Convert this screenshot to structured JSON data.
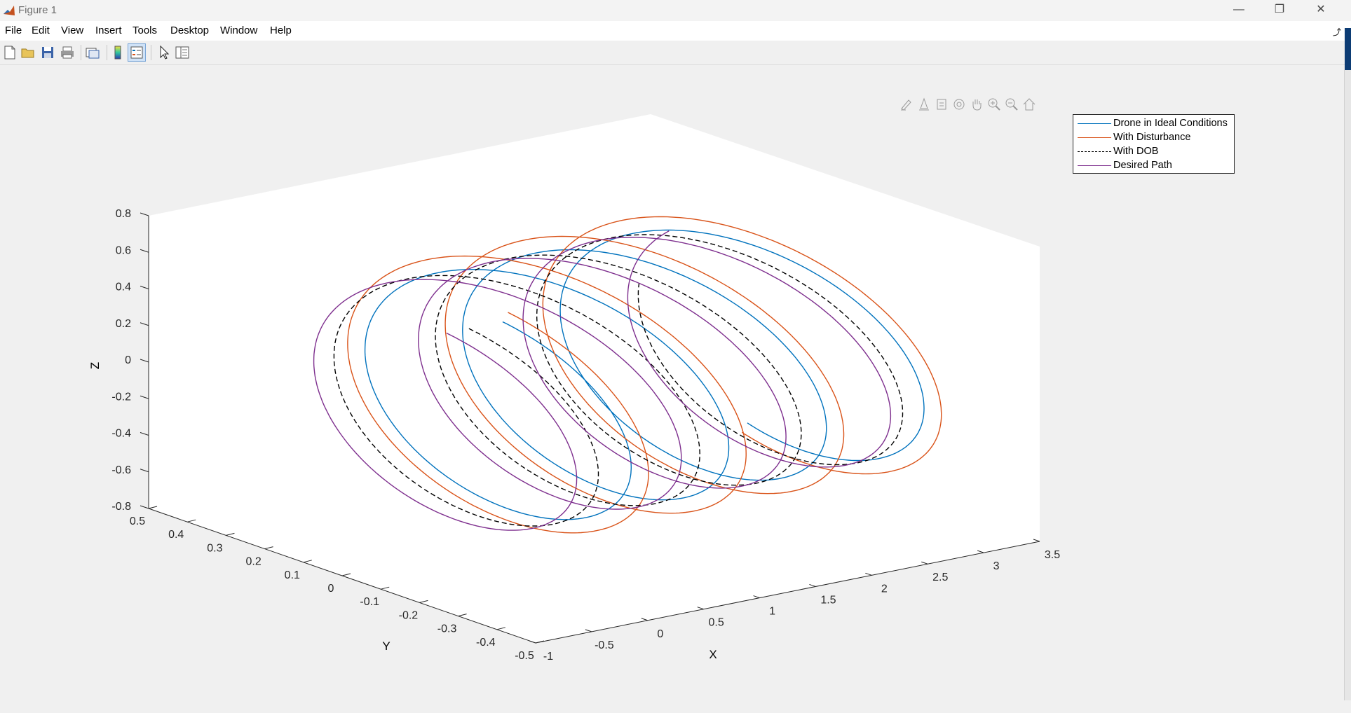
{
  "window": {
    "title": "Figure 1",
    "controls": {
      "minimize": "—",
      "restore": "❐",
      "close": "✕"
    }
  },
  "menubar": {
    "items": [
      "File",
      "Edit",
      "View",
      "Insert",
      "Tools",
      "Desktop",
      "Window",
      "Help"
    ]
  },
  "toolbar": {
    "buttons": [
      "new-figure-icon",
      "open-file-icon",
      "save-icon",
      "print-icon",
      "link-plot-icon",
      "insert-colorbar-icon",
      "insert-legend-icon",
      "edit-plot-icon",
      "property-inspector-icon"
    ]
  },
  "axes_toolbar": {
    "buttons": [
      "brush-icon",
      "data-tips-icon",
      "export-icon",
      "rotate-3d-icon",
      "pan-icon",
      "zoom-in-icon",
      "zoom-out-icon",
      "home-icon"
    ]
  },
  "colors": {
    "ideal": "#0072bd",
    "disturbance": "#d95319",
    "dob": "#000000",
    "desired": "#7e2f8e",
    "figure_bg": "#f0f0f0",
    "axes_bg": "#ffffff"
  },
  "chart_data": {
    "type": "line",
    "subtype": "3d-helix",
    "title": "",
    "xlabel": "X",
    "ylabel": "Y",
    "zlabel": "Z",
    "xlim": [
      -1,
      3.5
    ],
    "ylim": [
      -0.5,
      0.5
    ],
    "zlim": [
      -0.8,
      0.8
    ],
    "xticks": [
      "-1",
      "-0.5",
      "0",
      "0.5",
      "1",
      "1.5",
      "2",
      "2.5",
      "3",
      "3.5"
    ],
    "yticks": [
      "-0.5",
      "-0.4",
      "-0.3",
      "-0.2",
      "-0.1",
      "0",
      "0.1",
      "0.2",
      "0.3",
      "0.4",
      "0.5"
    ],
    "zticks": [
      "-0.8",
      "-0.6",
      "-0.4",
      "-0.2",
      "0",
      "0.2",
      "0.4",
      "0.6",
      "0.8"
    ],
    "grid": false,
    "legend_position": "top-right",
    "series": [
      {
        "name": "Drone in Ideal Conditions",
        "color": "#0072bd",
        "style": "solid",
        "x_start": 0.0,
        "x_end": 3.05,
        "radius": 0.45,
        "turns": 3.5
      },
      {
        "name": "With Disturbance",
        "color": "#d95319",
        "style": "solid",
        "x_start": 0.0,
        "x_end": 3.05,
        "radius": 0.5,
        "turns": 3.5
      },
      {
        "name": "With DOB",
        "color": "#000000",
        "style": "dashed",
        "x_start": -0.3,
        "x_end": 3.05,
        "radius": 0.45,
        "turns": 3.7
      },
      {
        "name": "Desired Path",
        "color": "#7e2f8e",
        "style": "solid",
        "x_start": -0.5,
        "x_end": 3.05,
        "radius": 0.45,
        "turns": 3.8
      }
    ]
  }
}
